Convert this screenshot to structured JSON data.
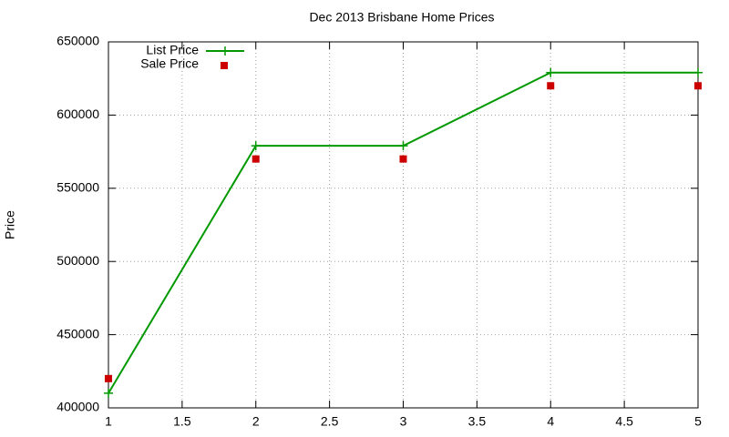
{
  "chart_data": {
    "type": "line",
    "title": "Dec 2013 Brisbane Home Prices",
    "y_label": "Price",
    "x": [
      1,
      2,
      3,
      4,
      5
    ],
    "series": [
      {
        "name": "List Price",
        "color": "#009900",
        "style": "linespoints",
        "values": [
          410000,
          579000,
          579000,
          629000,
          629000
        ]
      },
      {
        "name": "Sale Price",
        "color": "#cc0000",
        "style": "points",
        "values": [
          420000,
          570000,
          570000,
          620000,
          620000
        ]
      }
    ],
    "xlim": [
      1,
      5
    ],
    "xticks": [
      1,
      1.5,
      2,
      2.5,
      3,
      3.5,
      4,
      4.5,
      5
    ],
    "ylim": [
      400000,
      650000
    ],
    "yticks": [
      400000,
      450000,
      500000,
      550000,
      600000,
      650000
    ],
    "grid": true,
    "legend": "top-left"
  }
}
